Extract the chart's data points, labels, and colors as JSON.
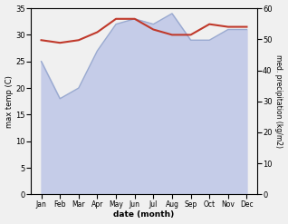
{
  "months": [
    "Jan",
    "Feb",
    "Mar",
    "Apr",
    "May",
    "Jun",
    "Jul",
    "Aug",
    "Sep",
    "Oct",
    "Nov",
    "Dec"
  ],
  "max_temp": [
    29,
    28.5,
    29,
    30.5,
    33,
    33,
    31,
    30,
    30,
    32,
    31.5,
    31.5
  ],
  "precipitation": [
    25,
    18,
    20,
    27,
    32,
    33,
    32,
    34,
    29,
    29,
    31,
    31
  ],
  "temp_color": "#c0392b",
  "precip_fill_color": "#c5cce8",
  "precip_line_color": "#9aaad0",
  "xlabel": "date (month)",
  "ylabel_left": "max temp (C)",
  "ylabel_right": "med. precipitation (kg/m2)",
  "ylim_left": [
    0,
    35
  ],
  "ylim_right": [
    0,
    60
  ],
  "yticks_left": [
    0,
    5,
    10,
    15,
    20,
    25,
    30,
    35
  ],
  "yticks_right": [
    0,
    10,
    20,
    30,
    40,
    50,
    60
  ],
  "bg_color": "#f0f0f0"
}
